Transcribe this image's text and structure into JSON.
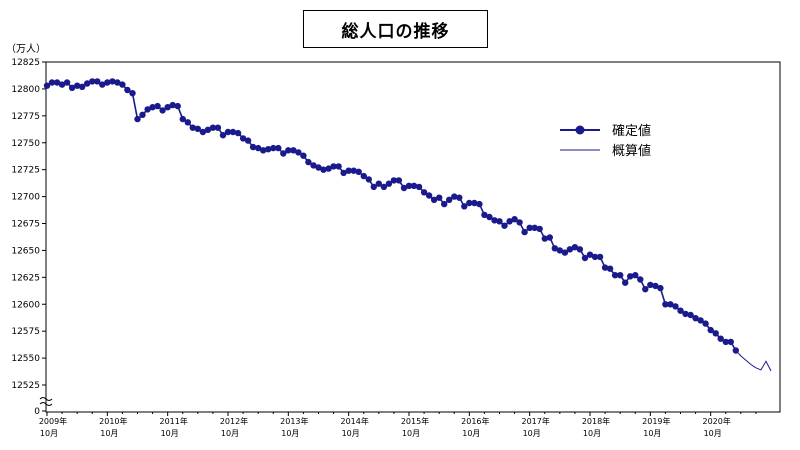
{
  "title": "総人口の推移",
  "ylabel": "（万人）",
  "legend": {
    "confirmed": "確定値",
    "estimate": "概算値"
  },
  "colors": {
    "series": "#1a1a8c",
    "frame": "#000000",
    "axis": "#000000"
  },
  "chart_data": {
    "type": "line",
    "title": "総人口の推移",
    "ylabel": "（万人）",
    "xlabel": "",
    "y_ticks": [
      "0",
      "12525",
      "12550",
      "12575",
      "12600",
      "12625",
      "12650",
      "12675",
      "12700",
      "12725",
      "12750",
      "12775",
      "12800",
      "12825"
    ],
    "x_tick_labels": [
      {
        "year": "2009年",
        "month": "10月"
      },
      {
        "year": "2010年",
        "month": "10月"
      },
      {
        "year": "2011年",
        "month": "10月"
      },
      {
        "year": "2012年",
        "month": "10月"
      },
      {
        "year": "2013年",
        "month": "10月"
      },
      {
        "year": "2014年",
        "month": "10月"
      },
      {
        "year": "2015年",
        "month": "10月"
      },
      {
        "year": "2016年",
        "month": "10月"
      },
      {
        "year": "2017年",
        "month": "10月"
      },
      {
        "year": "2018年",
        "month": "10月"
      },
      {
        "year": "2019年",
        "month": "10月"
      },
      {
        "year": "2020年",
        "month": "10月"
      }
    ],
    "ylim": [
      12500,
      12825
    ],
    "axis_break": true,
    "x_start": "2009-10",
    "series": [
      {
        "name": "確定値",
        "values": [
          12803,
          12806,
          12806,
          12804,
          12806,
          12801,
          12803,
          12802,
          12805,
          12807,
          12807,
          12804,
          12806,
          12807,
          12806,
          12804,
          12799,
          12796,
          12772,
          12776,
          12781,
          12783,
          12784,
          12780,
          12783,
          12785,
          12784,
          12772,
          12769,
          12764,
          12763,
          12760,
          12762,
          12764,
          12764,
          12757,
          12760,
          12760,
          12759,
          12754,
          12752,
          12746,
          12745,
          12743,
          12744,
          12745,
          12745,
          12740,
          12743,
          12743,
          12741,
          12738,
          12732,
          12729,
          12727,
          12725,
          12726,
          12728,
          12728,
          12722,
          12724,
          12724,
          12723,
          12719,
          12716,
          12709,
          12712,
          12709,
          12712,
          12715,
          12715,
          12708,
          12710,
          12710,
          12709,
          12704,
          12701,
          12697,
          12699,
          12693,
          12697,
          12700,
          12699,
          12691,
          12694,
          12694,
          12693,
          12683,
          12681,
          12678,
          12677,
          12673,
          12677,
          12679,
          12676,
          12667,
          12671,
          12671,
          12670,
          12661,
          12662,
          12652,
          12650,
          12648,
          12651,
          12653,
          12651,
          12643,
          12646,
          12644,
          12644,
          12634,
          12633,
          12627,
          12627,
          12620,
          12626,
          12627,
          12623,
          12614,
          12618,
          12617,
          12615,
          12600,
          12600,
          12598,
          12594,
          12591,
          12590,
          12587,
          12585,
          12582,
          12576,
          12573,
          12568,
          12565,
          12565,
          12557
        ]
      },
      {
        "name": "概算値",
        "values": [
          12557,
          12552,
          12548,
          12544,
          12541,
          12539,
          12547,
          12538
        ]
      }
    ]
  }
}
